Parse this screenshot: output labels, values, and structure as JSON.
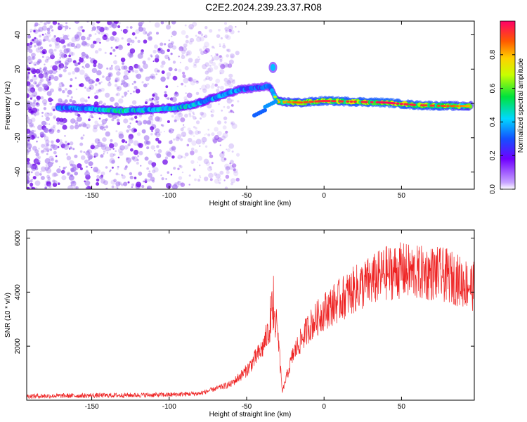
{
  "title": "C2E2.2024.239.23.37.R08",
  "colors": {
    "snr_line": "#ee2222",
    "speckle": "#8a2be2",
    "frame": "#000000"
  },
  "chart_data": [
    {
      "type": "heatmap",
      "xlabel": "Height of straight line (km)",
      "ylabel": "Frequency (Hz)",
      "xlim": [
        -192,
        97
      ],
      "ylim": [
        -50,
        48
      ],
      "x_ticks": [
        -150,
        -100,
        -50,
        0,
        50
      ],
      "y_ticks": [
        -40,
        -20,
        0,
        20,
        40
      ],
      "colorbar": {
        "label": "Normalized spectral amplitude",
        "range": [
          0,
          1
        ],
        "ticks": [
          0.0,
          0.2,
          0.4,
          0.6,
          0.8
        ],
        "tick_labels": [
          "0.0",
          "0.2",
          "0.4",
          "0.6",
          "0.8"
        ],
        "colormap": "rainbow"
      },
      "ridge": [
        {
          "x": -172,
          "y": -2.5,
          "v": 0.45
        },
        {
          "x": -150,
          "y": -3,
          "v": 0.5
        },
        {
          "x": -130,
          "y": -4.5,
          "v": 0.6
        },
        {
          "x": -110,
          "y": -3.5,
          "v": 0.5
        },
        {
          "x": -95,
          "y": -2.5,
          "v": 0.55
        },
        {
          "x": -85,
          "y": -1,
          "v": 0.55
        },
        {
          "x": -75,
          "y": 2,
          "v": 0.5
        },
        {
          "x": -65,
          "y": 5,
          "v": 0.5
        },
        {
          "x": -55,
          "y": 8,
          "v": 0.45
        },
        {
          "x": -45,
          "y": 9,
          "v": 0.4
        },
        {
          "x": -35,
          "y": 10,
          "v": 0.4
        },
        {
          "x": -33,
          "y": 21,
          "v": 0.4
        },
        {
          "x": -45,
          "y": -7,
          "v": 0.35
        },
        {
          "x": -38,
          "y": -2,
          "v": 0.4
        },
        {
          "x": -30,
          "y": 1,
          "v": 0.7
        },
        {
          "x": -15,
          "y": 0.5,
          "v": 0.8
        },
        {
          "x": 0,
          "y": 1.5,
          "v": 0.85
        },
        {
          "x": 20,
          "y": 1,
          "v": 0.85
        },
        {
          "x": 40,
          "y": 0.5,
          "v": 0.9
        },
        {
          "x": 60,
          "y": -1,
          "v": 0.85
        },
        {
          "x": 80,
          "y": -1.5,
          "v": 0.8
        },
        {
          "x": 95,
          "y": -1.5,
          "v": 0.7
        }
      ]
    },
    {
      "type": "line",
      "xlabel": "Height of straight line (km)",
      "ylabel": "SNR (10 * v/v)",
      "xlim": [
        -192,
        97
      ],
      "ylim": [
        0,
        6300
      ],
      "x_ticks": [
        -150,
        -100,
        -50,
        0,
        50
      ],
      "y_ticks": [
        2000,
        4000,
        6000
      ],
      "series": [
        {
          "trend": [
            {
              "x": -192,
              "y": 150
            },
            {
              "x": -100,
              "y": 200
            },
            {
              "x": -80,
              "y": 250
            },
            {
              "x": -60,
              "y": 600
            },
            {
              "x": -50,
              "y": 1100
            },
            {
              "x": -40,
              "y": 1900
            },
            {
              "x": -33,
              "y": 3000
            },
            {
              "x": -30,
              "y": 2600
            },
            {
              "x": -27,
              "y": 300
            },
            {
              "x": -20,
              "y": 1700
            },
            {
              "x": -10,
              "y": 2700
            },
            {
              "x": 0,
              "y": 3300
            },
            {
              "x": 10,
              "y": 3700
            },
            {
              "x": 20,
              "y": 4100
            },
            {
              "x": 30,
              "y": 4400
            },
            {
              "x": 40,
              "y": 4700
            },
            {
              "x": 50,
              "y": 4800
            },
            {
              "x": 60,
              "y": 4700
            },
            {
              "x": 70,
              "y": 4700
            },
            {
              "x": 80,
              "y": 4600
            },
            {
              "x": 97,
              "y": 4200
            }
          ]
        }
      ]
    }
  ]
}
